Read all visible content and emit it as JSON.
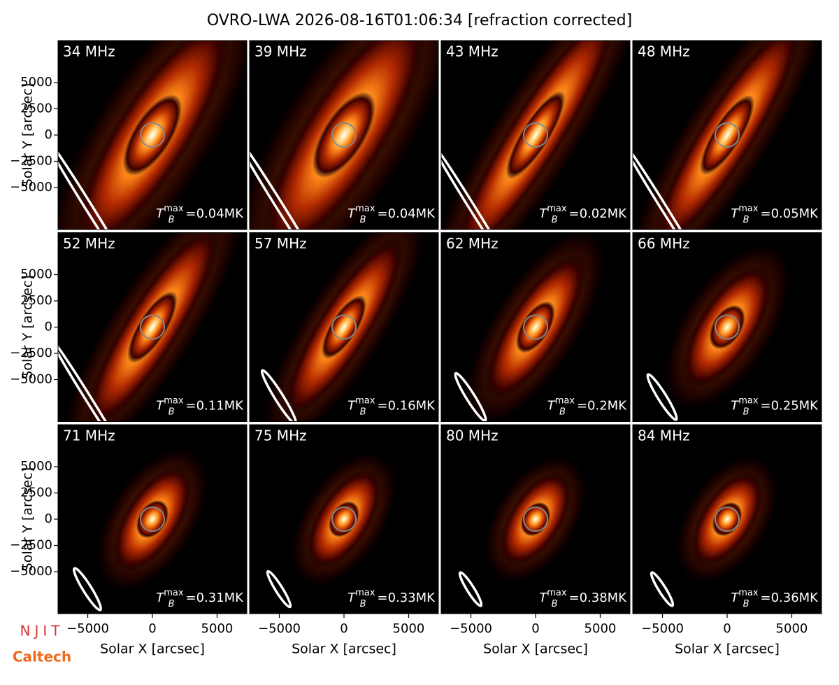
{
  "title": "OVRO-LWA 2026-08-16T01:06:34 [refraction corrected]",
  "x_label": "Solar X [arcsec]",
  "y_label": "Solar Y [arcsec]",
  "xlim": [
    -7300,
    7300
  ],
  "ylim": [
    -9000,
    9000
  ],
  "xticks": [
    {
      "value": -5000,
      "label": "−5000"
    },
    0,
    5000
  ],
  "yticks": [
    {
      "value": -5000,
      "label": "−5000"
    },
    {
      "value": -2500,
      "label": "−2500"
    },
    0,
    2500,
    5000
  ],
  "tmax_label": {
    "symbol": "T",
    "subscript": "B",
    "superscript": "max",
    "equals": "="
  },
  "panels": [
    {
      "frequency": "34 MHz",
      "tmax": "0.04MK"
    },
    {
      "frequency": "39 MHz",
      "tmax": "0.04MK"
    },
    {
      "frequency": "43 MHz",
      "tmax": "0.02MK"
    },
    {
      "frequency": "48 MHz",
      "tmax": "0.05MK"
    },
    {
      "frequency": "52 MHz",
      "tmax": "0.11MK"
    },
    {
      "frequency": "57 MHz",
      "tmax": "0.16MK"
    },
    {
      "frequency": "62 MHz",
      "tmax": "0.2MK"
    },
    {
      "frequency": "66 MHz",
      "tmax": "0.25MK"
    },
    {
      "frequency": "71 MHz",
      "tmax": "0.31MK"
    },
    {
      "frequency": "75 MHz",
      "tmax": "0.33MK"
    },
    {
      "frequency": "80 MHz",
      "tmax": "0.38MK"
    },
    {
      "frequency": "84 MHz",
      "tmax": "0.36MK"
    }
  ],
  "logos": [
    "NJIT",
    "Caltech"
  ]
}
